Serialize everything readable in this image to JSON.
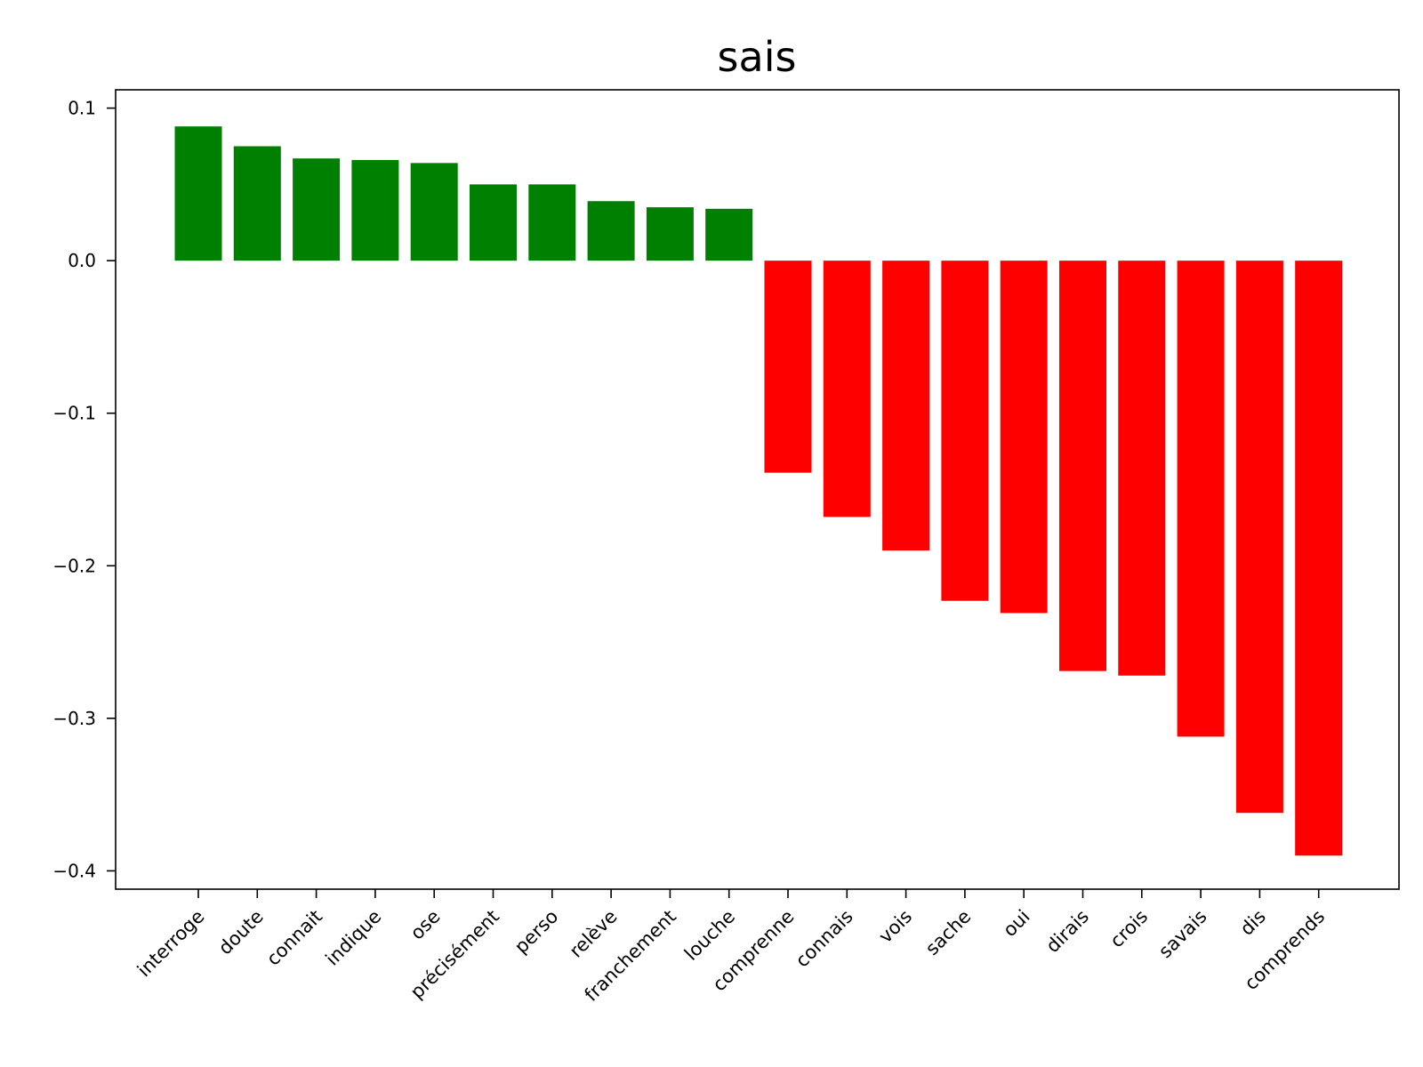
{
  "chart_data": {
    "type": "bar",
    "title": "sais",
    "xlabel": "",
    "ylabel": "",
    "categories": [
      "interroge",
      "doute",
      "connait",
      "indique",
      "ose",
      "précisément",
      "perso",
      "relève",
      "franchement",
      "louche",
      "comprenne",
      "connais",
      "vois",
      "sache",
      "oui",
      "dirais",
      "crois",
      "savais",
      "dis",
      "comprends"
    ],
    "values": [
      0.088,
      0.075,
      0.067,
      0.066,
      0.064,
      0.05,
      0.05,
      0.039,
      0.035,
      0.034,
      -0.139,
      -0.168,
      -0.19,
      -0.223,
      -0.231,
      -0.269,
      -0.272,
      -0.312,
      -0.362,
      -0.39
    ],
    "positive_color": "#008000",
    "negative_color": "#ff0000",
    "ylim": [
      -0.412,
      0.112
    ],
    "yticks": [
      0.1,
      0.0,
      -0.1,
      -0.2,
      -0.3,
      -0.4
    ],
    "ytick_labels": [
      "0.1",
      "0.0",
      "−0.1",
      "−0.2",
      "−0.3",
      "−0.4"
    ],
    "grid": false,
    "xtick_rotation": 45
  }
}
